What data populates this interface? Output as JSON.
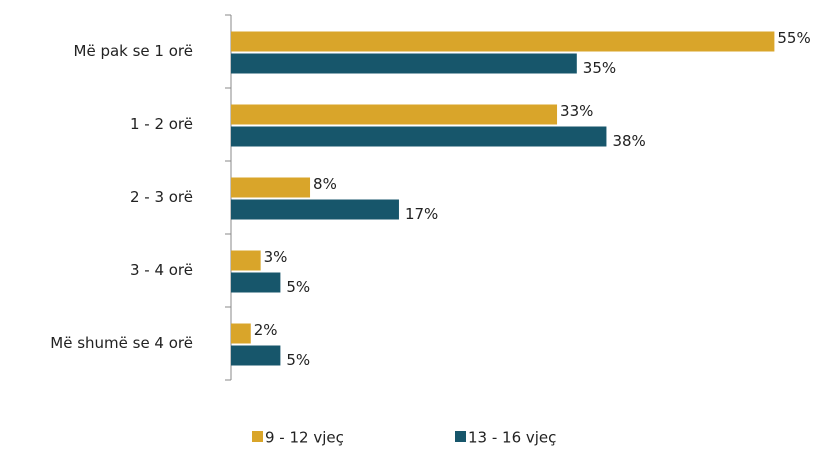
{
  "chart_data": {
    "type": "bar",
    "orientation": "horizontal",
    "categories": [
      "Më pak se 1 orë",
      "1 - 2 orë",
      "2 - 3 orë",
      "3 - 4 orë",
      "Më shumë se 4 orë"
    ],
    "series": [
      {
        "name": "9 - 12 vjeç",
        "color": "#d9a52a",
        "values": [
          55,
          33,
          8,
          3,
          2
        ],
        "value_labels": [
          "55%",
          "33%",
          "8%",
          "3%",
          "2%"
        ]
      },
      {
        "name": "13 - 16 vjeç",
        "color": "#17566b",
        "values": [
          35,
          38,
          17,
          5,
          5
        ],
        "value_labels": [
          "35%",
          "38%",
          "17%",
          "5%",
          "5%"
        ]
      }
    ]
  }
}
